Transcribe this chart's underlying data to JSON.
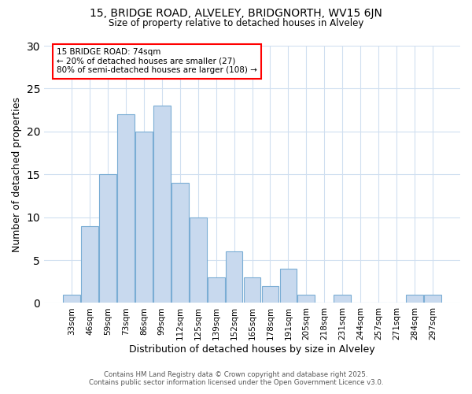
{
  "title": "15, BRIDGE ROAD, ALVELEY, BRIDGNORTH, WV15 6JN",
  "subtitle": "Size of property relative to detached houses in Alveley",
  "xlabel": "Distribution of detached houses by size in Alveley",
  "ylabel": "Number of detached properties",
  "categories": [
    "33sqm",
    "46sqm",
    "59sqm",
    "73sqm",
    "86sqm",
    "99sqm",
    "112sqm",
    "125sqm",
    "139sqm",
    "152sqm",
    "165sqm",
    "178sqm",
    "191sqm",
    "205sqm",
    "218sqm",
    "231sqm",
    "244sqm",
    "257sqm",
    "271sqm",
    "284sqm",
    "297sqm"
  ],
  "values": [
    1,
    9,
    15,
    22,
    20,
    23,
    14,
    10,
    3,
    6,
    3,
    2,
    4,
    1,
    0,
    1,
    0,
    0,
    0,
    1,
    1
  ],
  "bar_color": "#c8d9ee",
  "bar_edge_color": "#7aadd4",
  "ylim": [
    0,
    30
  ],
  "yticks": [
    0,
    5,
    10,
    15,
    20,
    25,
    30
  ],
  "annotation_title": "15 BRIDGE ROAD: 74sqm",
  "annotation_line1": "← 20% of detached houses are smaller (27)",
  "annotation_line2": "80% of semi-detached houses are larger (108) →",
  "footer_line1": "Contains HM Land Registry data © Crown copyright and database right 2025.",
  "footer_line2": "Contains public sector information licensed under the Open Government Licence v3.0.",
  "background_color": "#ffffff",
  "plot_bg_color": "#ffffff",
  "grid_color": "#d0dff0"
}
